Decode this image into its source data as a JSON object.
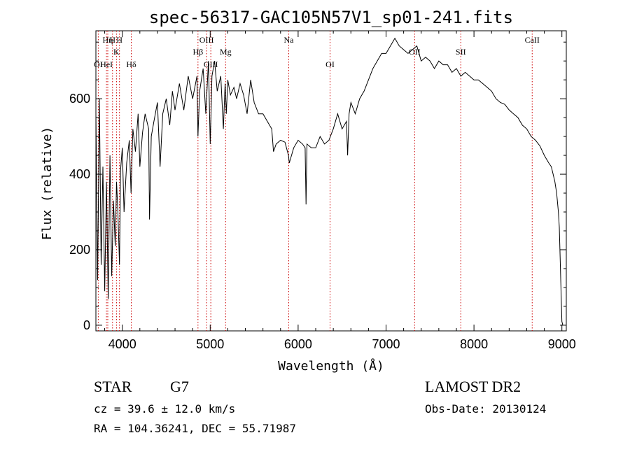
{
  "chart_data": {
    "type": "line",
    "title": "spec-56317-GAC105N57V1_sp01-241.fits",
    "xlabel": "Wavelength (Å)",
    "ylabel": "Flux (relative)",
    "xlim": [
      3700,
      9050
    ],
    "ylim": [
      -15,
      780
    ],
    "xticks": [
      4000,
      5000,
      6000,
      7000,
      8000,
      9000
    ],
    "yticks": [
      0,
      200,
      400,
      600
    ],
    "grid": false,
    "series_color": "#000000",
    "line_color": "#cc0000",
    "spectrum": {
      "x": [
        3700,
        3720,
        3740,
        3760,
        3780,
        3800,
        3820,
        3840,
        3860,
        3880,
        3900,
        3920,
        3935,
        3950,
        3968,
        3980,
        4000,
        4020,
        4050,
        4080,
        4100,
        4120,
        4150,
        4180,
        4200,
        4230,
        4260,
        4300,
        4310,
        4330,
        4360,
        4400,
        4430,
        4460,
        4500,
        4540,
        4570,
        4600,
        4650,
        4700,
        4750,
        4800,
        4850,
        4861,
        4880,
        4920,
        4950,
        4980,
        5000,
        5020,
        5050,
        5080,
        5120,
        5150,
        5170,
        5183,
        5200,
        5230,
        5270,
        5300,
        5340,
        5380,
        5420,
        5460,
        5500,
        5550,
        5600,
        5650,
        5700,
        5720,
        5750,
        5800,
        5850,
        5890,
        5900,
        5950,
        6000,
        6050,
        6080,
        6090,
        6100,
        6150,
        6200,
        6250,
        6300,
        6350,
        6400,
        6450,
        6500,
        6550,
        6563,
        6580,
        6600,
        6650,
        6700,
        6750,
        6800,
        6850,
        6900,
        6950,
        7000,
        7050,
        7100,
        7150,
        7200,
        7250,
        7300,
        7350,
        7400,
        7450,
        7500,
        7550,
        7600,
        7650,
        7700,
        7750,
        7800,
        7850,
        7900,
        7950,
        8000,
        8050,
        8100,
        8150,
        8200,
        8250,
        8300,
        8350,
        8400,
        8450,
        8500,
        8550,
        8600,
        8650,
        8700,
        8750,
        8800,
        8850,
        8880,
        8900,
        8920,
        8940,
        8960,
        8970,
        8980,
        8990,
        9000,
        9010
      ],
      "y": [
        560,
        120,
        600,
        160,
        420,
        90,
        380,
        70,
        450,
        130,
        330,
        210,
        380,
        300,
        160,
        410,
        470,
        300,
        430,
        490,
        350,
        520,
        460,
        560,
        420,
        510,
        560,
        520,
        280,
        500,
        540,
        590,
        420,
        560,
        600,
        530,
        620,
        570,
        640,
        570,
        660,
        600,
        660,
        500,
        620,
        680,
        560,
        700,
        480,
        660,
        700,
        620,
        660,
        520,
        640,
        560,
        650,
        610,
        630,
        600,
        640,
        610,
        560,
        650,
        590,
        560,
        560,
        540,
        520,
        460,
        480,
        490,
        485,
        450,
        430,
        470,
        490,
        480,
        470,
        320,
        480,
        470,
        470,
        500,
        480,
        490,
        520,
        560,
        520,
        540,
        450,
        560,
        590,
        560,
        600,
        620,
        650,
        680,
        700,
        720,
        720,
        740,
        760,
        740,
        730,
        720,
        730,
        740,
        700,
        710,
        700,
        680,
        700,
        690,
        690,
        670,
        680,
        660,
        670,
        660,
        650,
        650,
        640,
        630,
        620,
        600,
        590,
        585,
        570,
        560,
        550,
        530,
        520,
        500,
        490,
        475,
        450,
        430,
        420,
        400,
        380,
        350,
        300,
        260,
        180,
        90,
        10,
        0
      ]
    },
    "lines": [
      {
        "label": "OI",
        "x": 3727,
        "row": 3
      },
      {
        "label": "HeI",
        "x": 3820,
        "row": 3
      },
      {
        "label": "Hη",
        "x": 3835,
        "row": 1
      },
      {
        "label": "H",
        "x": 3889,
        "row": 1
      },
      {
        "label": "K",
        "x": 3934,
        "row": 2
      },
      {
        "label": "H",
        "x": 3968,
        "row": 1
      },
      {
        "label": "Hδ",
        "x": 4102,
        "row": 3
      },
      {
        "label": "Hβ",
        "x": 4861,
        "row": 2
      },
      {
        "label": "OIII",
        "x": 4959,
        "row": 1
      },
      {
        "label": "OIII",
        "x": 5007,
        "row": 3
      },
      {
        "label": "Mg",
        "x": 5175,
        "row": 2
      },
      {
        "label": "Na",
        "x": 5893,
        "row": 1
      },
      {
        "label": "OI",
        "x": 6363,
        "row": 3
      },
      {
        "label": "OII",
        "x": 7325,
        "row": 2
      },
      {
        "label": "SII",
        "x": 7850,
        "row": 2
      },
      {
        "label": "CaII",
        "x": 8662,
        "row": 1
      }
    ]
  },
  "info": {
    "object_class": "STAR",
    "subclass": "G7",
    "cz": "cz = 39.6 ± 12.0 km/s",
    "coords": "RA = 104.36241, DEC =  55.71987",
    "survey": "LAMOST DR2",
    "obs_date": "Obs-Date: 20130124"
  }
}
